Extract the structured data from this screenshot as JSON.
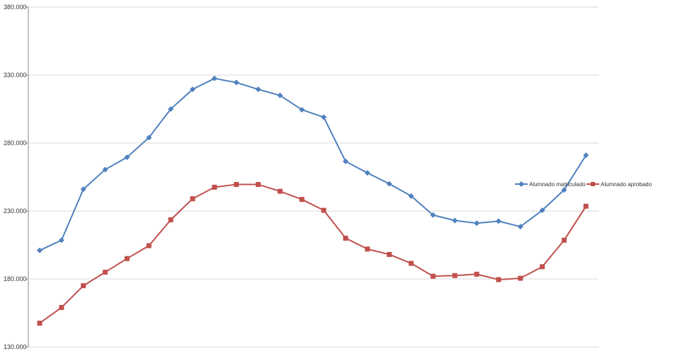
{
  "chart_data": {
    "type": "line",
    "title": "",
    "xlabel": "",
    "ylabel": "",
    "ylim": [
      130000,
      380000
    ],
    "y_ticks": [
      "130.000",
      "180.000",
      "230.000",
      "280.000",
      "330.000",
      "380.000"
    ],
    "y_tick_values": [
      130000,
      180000,
      230000,
      280000,
      330000,
      380000
    ],
    "grid": "horizontal",
    "legend_position": "right",
    "x": [
      1,
      2,
      3,
      4,
      5,
      6,
      7,
      8,
      9,
      10,
      11,
      12,
      13,
      14,
      15,
      16,
      17,
      18,
      19,
      20,
      21,
      22,
      23,
      24,
      25,
      26
    ],
    "series": [
      {
        "name": "Alumnado matriculado",
        "color": "#4f81bd",
        "marker": "diamond",
        "values": [
          201000,
          208500,
          246000,
          260500,
          269500,
          284000,
          305000,
          319500,
          327500,
          324500,
          319500,
          315000,
          304500,
          299000,
          266500,
          258000,
          250000,
          241000,
          227000,
          223000,
          221000,
          222500,
          218500,
          230500,
          245500,
          271000
        ]
      },
      {
        "name": "Alumnado aprobado",
        "color": "#c0504d",
        "marker": "square",
        "values": [
          147500,
          159000,
          175000,
          185000,
          195000,
          204500,
          223500,
          239000,
          247500,
          249500,
          249500,
          244500,
          238500,
          230500,
          210000,
          202000,
          198000,
          191500,
          182000,
          182500,
          183500,
          179500,
          180500,
          189000,
          208500,
          233500
        ]
      }
    ]
  }
}
